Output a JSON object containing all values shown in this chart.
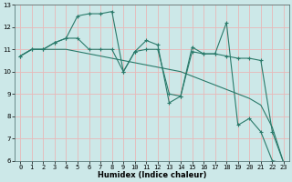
{
  "xlabel": "Humidex (Indice chaleur)",
  "background_color": "#cce8e8",
  "grid_color_major": "#e8b8b8",
  "line_color": "#2a7a6a",
  "x_values": [
    0,
    1,
    2,
    3,
    4,
    5,
    6,
    7,
    8,
    9,
    10,
    11,
    12,
    13,
    14,
    15,
    16,
    17,
    18,
    19,
    20,
    21,
    22,
    23
  ],
  "series1": [
    10.7,
    11.0,
    11.0,
    11.3,
    11.5,
    12.5,
    12.6,
    12.6,
    12.7,
    10.0,
    10.9,
    11.4,
    11.2,
    8.6,
    8.9,
    11.1,
    10.8,
    10.8,
    12.2,
    7.6,
    7.9,
    7.3,
    6.0,
    5.9
  ],
  "series2": [
    10.7,
    11.0,
    11.0,
    11.3,
    11.5,
    11.5,
    11.0,
    11.0,
    11.0,
    10.0,
    10.9,
    11.0,
    11.0,
    9.0,
    8.9,
    10.9,
    10.8,
    10.8,
    10.7,
    10.6,
    10.6,
    10.5,
    7.3,
    5.9
  ],
  "series3": [
    10.7,
    11.0,
    11.0,
    11.0,
    11.0,
    10.9,
    10.8,
    10.7,
    10.6,
    10.5,
    10.4,
    10.3,
    10.2,
    10.1,
    10.0,
    9.8,
    9.6,
    9.4,
    9.2,
    9.0,
    8.8,
    8.5,
    7.5,
    5.9
  ],
  "ylim": [
    6,
    13
  ],
  "xlim_min": -0.5,
  "xlim_max": 23.5,
  "yticks": [
    6,
    7,
    8,
    9,
    10,
    11,
    12,
    13
  ],
  "xticks": [
    0,
    1,
    2,
    3,
    4,
    5,
    6,
    7,
    8,
    9,
    10,
    11,
    12,
    13,
    14,
    15,
    16,
    17,
    18,
    19,
    20,
    21,
    22,
    23
  ],
  "tick_fontsize": 5.0,
  "xlabel_fontsize": 6.0,
  "ylabel_fontsize": 5.5,
  "linewidth": 0.8,
  "marker_size": 3.0,
  "marker_ew": 0.8
}
